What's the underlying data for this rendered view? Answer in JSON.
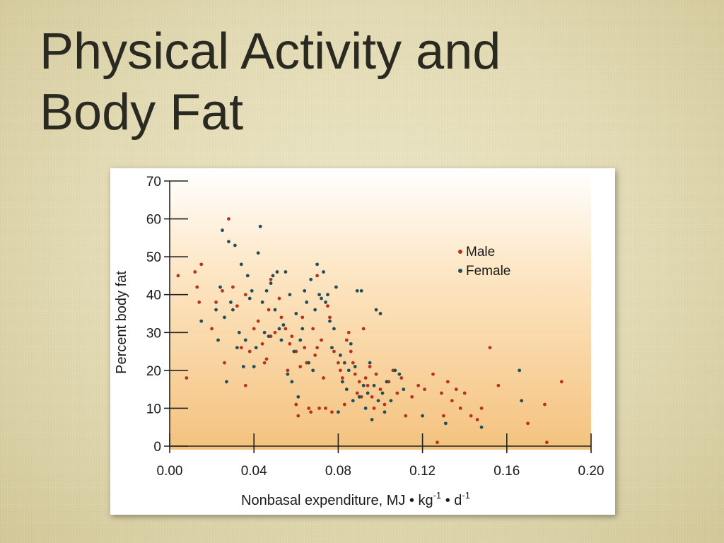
{
  "slide": {
    "title_line1": "Physical Activity and",
    "title_line2": "Body Fat"
  },
  "colors": {
    "male": "#b8321c",
    "female": "#1f4f5c",
    "panel_top": "#ffffff",
    "panel_bottom": "#f4c27e"
  },
  "chart_data": {
    "type": "scatter",
    "title": "",
    "xlabel": "Nonbasal expenditure, MJ • kg",
    "xlabel_sup1": "-1",
    "xlabel_mid": " • d",
    "xlabel_sup2": "-1",
    "ylabel": "Percent body fat",
    "xlim": [
      0,
      0.2
    ],
    "ylim": [
      0,
      70
    ],
    "xticks": [
      0,
      0.04,
      0.08,
      0.12,
      0.16,
      0.2
    ],
    "xtick_labels": [
      "0.00",
      "0.04",
      "0.08",
      "0.12",
      "0.16",
      "0.20"
    ],
    "yticks": [
      0,
      10,
      20,
      30,
      40,
      50,
      60,
      70
    ],
    "ytick_labels": [
      "0",
      "10",
      "20",
      "30",
      "40",
      "50",
      "60",
      "70"
    ],
    "grid": false,
    "legend": "top-right",
    "series": [
      {
        "name": "Male",
        "color": "#b8321c",
        "points": [
          [
            0.004,
            45
          ],
          [
            0.008,
            18
          ],
          [
            0.012,
            46
          ],
          [
            0.013,
            42
          ],
          [
            0.014,
            38
          ],
          [
            0.015,
            48
          ],
          [
            0.02,
            31
          ],
          [
            0.022,
            38
          ],
          [
            0.025,
            41
          ],
          [
            0.026,
            22
          ],
          [
            0.028,
            60
          ],
          [
            0.03,
            42
          ],
          [
            0.032,
            37
          ],
          [
            0.034,
            26
          ],
          [
            0.036,
            40
          ],
          [
            0.036,
            16
          ],
          [
            0.038,
            25
          ],
          [
            0.04,
            31
          ],
          [
            0.042,
            33
          ],
          [
            0.044,
            27
          ],
          [
            0.045,
            22
          ],
          [
            0.046,
            23
          ],
          [
            0.047,
            36
          ],
          [
            0.048,
            29
          ],
          [
            0.048,
            44
          ],
          [
            0.05,
            30
          ],
          [
            0.052,
            39
          ],
          [
            0.053,
            34
          ],
          [
            0.055,
            31
          ],
          [
            0.056,
            20
          ],
          [
            0.057,
            27
          ],
          [
            0.058,
            29
          ],
          [
            0.06,
            25
          ],
          [
            0.06,
            11
          ],
          [
            0.061,
            8
          ],
          [
            0.062,
            21
          ],
          [
            0.063,
            34
          ],
          [
            0.064,
            26
          ],
          [
            0.065,
            22
          ],
          [
            0.066,
            10
          ],
          [
            0.067,
            9
          ],
          [
            0.068,
            31
          ],
          [
            0.069,
            24
          ],
          [
            0.07,
            26
          ],
          [
            0.07,
            45
          ],
          [
            0.071,
            10
          ],
          [
            0.072,
            28
          ],
          [
            0.073,
            18
          ],
          [
            0.074,
            10
          ],
          [
            0.075,
            37
          ],
          [
            0.076,
            34
          ],
          [
            0.077,
            9
          ],
          [
            0.078,
            25
          ],
          [
            0.08,
            22
          ],
          [
            0.081,
            20
          ],
          [
            0.082,
            18
          ],
          [
            0.083,
            11
          ],
          [
            0.084,
            28
          ],
          [
            0.085,
            30
          ],
          [
            0.086,
            25
          ],
          [
            0.087,
            22
          ],
          [
            0.088,
            19
          ],
          [
            0.089,
            14
          ],
          [
            0.09,
            17
          ],
          [
            0.091,
            13
          ],
          [
            0.092,
            31
          ],
          [
            0.093,
            18
          ],
          [
            0.094,
            16
          ],
          [
            0.095,
            21
          ],
          [
            0.096,
            13
          ],
          [
            0.097,
            10
          ],
          [
            0.098,
            19
          ],
          [
            0.1,
            15
          ],
          [
            0.102,
            11
          ],
          [
            0.104,
            17
          ],
          [
            0.106,
            20
          ],
          [
            0.108,
            14
          ],
          [
            0.11,
            18
          ],
          [
            0.112,
            8
          ],
          [
            0.115,
            13
          ],
          [
            0.118,
            16
          ],
          [
            0.121,
            15
          ],
          [
            0.125,
            19
          ],
          [
            0.127,
            1
          ],
          [
            0.129,
            14
          ],
          [
            0.13,
            8
          ],
          [
            0.132,
            17
          ],
          [
            0.134,
            12
          ],
          [
            0.136,
            15
          ],
          [
            0.138,
            10
          ],
          [
            0.14,
            14
          ],
          [
            0.143,
            8
          ],
          [
            0.146,
            7
          ],
          [
            0.148,
            10
          ],
          [
            0.152,
            26
          ],
          [
            0.156,
            16
          ],
          [
            0.17,
            6
          ],
          [
            0.178,
            11
          ],
          [
            0.179,
            1
          ],
          [
            0.186,
            17
          ]
        ]
      },
      {
        "name": "Female",
        "color": "#1f4f5c",
        "points": [
          [
            0.015,
            33
          ],
          [
            0.022,
            36
          ],
          [
            0.023,
            28
          ],
          [
            0.024,
            42
          ],
          [
            0.025,
            57
          ],
          [
            0.026,
            34
          ],
          [
            0.027,
            17
          ],
          [
            0.028,
            54
          ],
          [
            0.029,
            38
          ],
          [
            0.03,
            36
          ],
          [
            0.031,
            53
          ],
          [
            0.032,
            26
          ],
          [
            0.033,
            30
          ],
          [
            0.034,
            48
          ],
          [
            0.035,
            21
          ],
          [
            0.036,
            28
          ],
          [
            0.037,
            45
          ],
          [
            0.038,
            39
          ],
          [
            0.039,
            41
          ],
          [
            0.04,
            21
          ],
          [
            0.041,
            26
          ],
          [
            0.042,
            51
          ],
          [
            0.043,
            58
          ],
          [
            0.044,
            38
          ],
          [
            0.045,
            30
          ],
          [
            0.046,
            41
          ],
          [
            0.047,
            29
          ],
          [
            0.048,
            43
          ],
          [
            0.049,
            45
          ],
          [
            0.05,
            36
          ],
          [
            0.051,
            46
          ],
          [
            0.052,
            31
          ],
          [
            0.053,
            28
          ],
          [
            0.054,
            32
          ],
          [
            0.055,
            46
          ],
          [
            0.056,
            19
          ],
          [
            0.057,
            40
          ],
          [
            0.058,
            17
          ],
          [
            0.059,
            25
          ],
          [
            0.06,
            35
          ],
          [
            0.061,
            13
          ],
          [
            0.062,
            28
          ],
          [
            0.063,
            31
          ],
          [
            0.064,
            41
          ],
          [
            0.065,
            38
          ],
          [
            0.066,
            22
          ],
          [
            0.067,
            44
          ],
          [
            0.068,
            20
          ],
          [
            0.069,
            36
          ],
          [
            0.07,
            48
          ],
          [
            0.071,
            40
          ],
          [
            0.072,
            39
          ],
          [
            0.073,
            46
          ],
          [
            0.074,
            38
          ],
          [
            0.075,
            40
          ],
          [
            0.076,
            33
          ],
          [
            0.077,
            26
          ],
          [
            0.078,
            31
          ],
          [
            0.079,
            42
          ],
          [
            0.08,
            9
          ],
          [
            0.081,
            24
          ],
          [
            0.082,
            17
          ],
          [
            0.083,
            22
          ],
          [
            0.084,
            15
          ],
          [
            0.085,
            20
          ],
          [
            0.086,
            27
          ],
          [
            0.087,
            12
          ],
          [
            0.088,
            21
          ],
          [
            0.089,
            41
          ],
          [
            0.09,
            13
          ],
          [
            0.091,
            41
          ],
          [
            0.092,
            16
          ],
          [
            0.093,
            10
          ],
          [
            0.094,
            14
          ],
          [
            0.095,
            22
          ],
          [
            0.096,
            7
          ],
          [
            0.097,
            16
          ],
          [
            0.098,
            36
          ],
          [
            0.099,
            12
          ],
          [
            0.1,
            35
          ],
          [
            0.101,
            14
          ],
          [
            0.102,
            9
          ],
          [
            0.103,
            17
          ],
          [
            0.105,
            12
          ],
          [
            0.107,
            20
          ],
          [
            0.109,
            19
          ],
          [
            0.111,
            15
          ],
          [
            0.12,
            8
          ],
          [
            0.131,
            6
          ],
          [
            0.148,
            5
          ],
          [
            0.166,
            20
          ],
          [
            0.167,
            12
          ]
        ]
      }
    ]
  }
}
